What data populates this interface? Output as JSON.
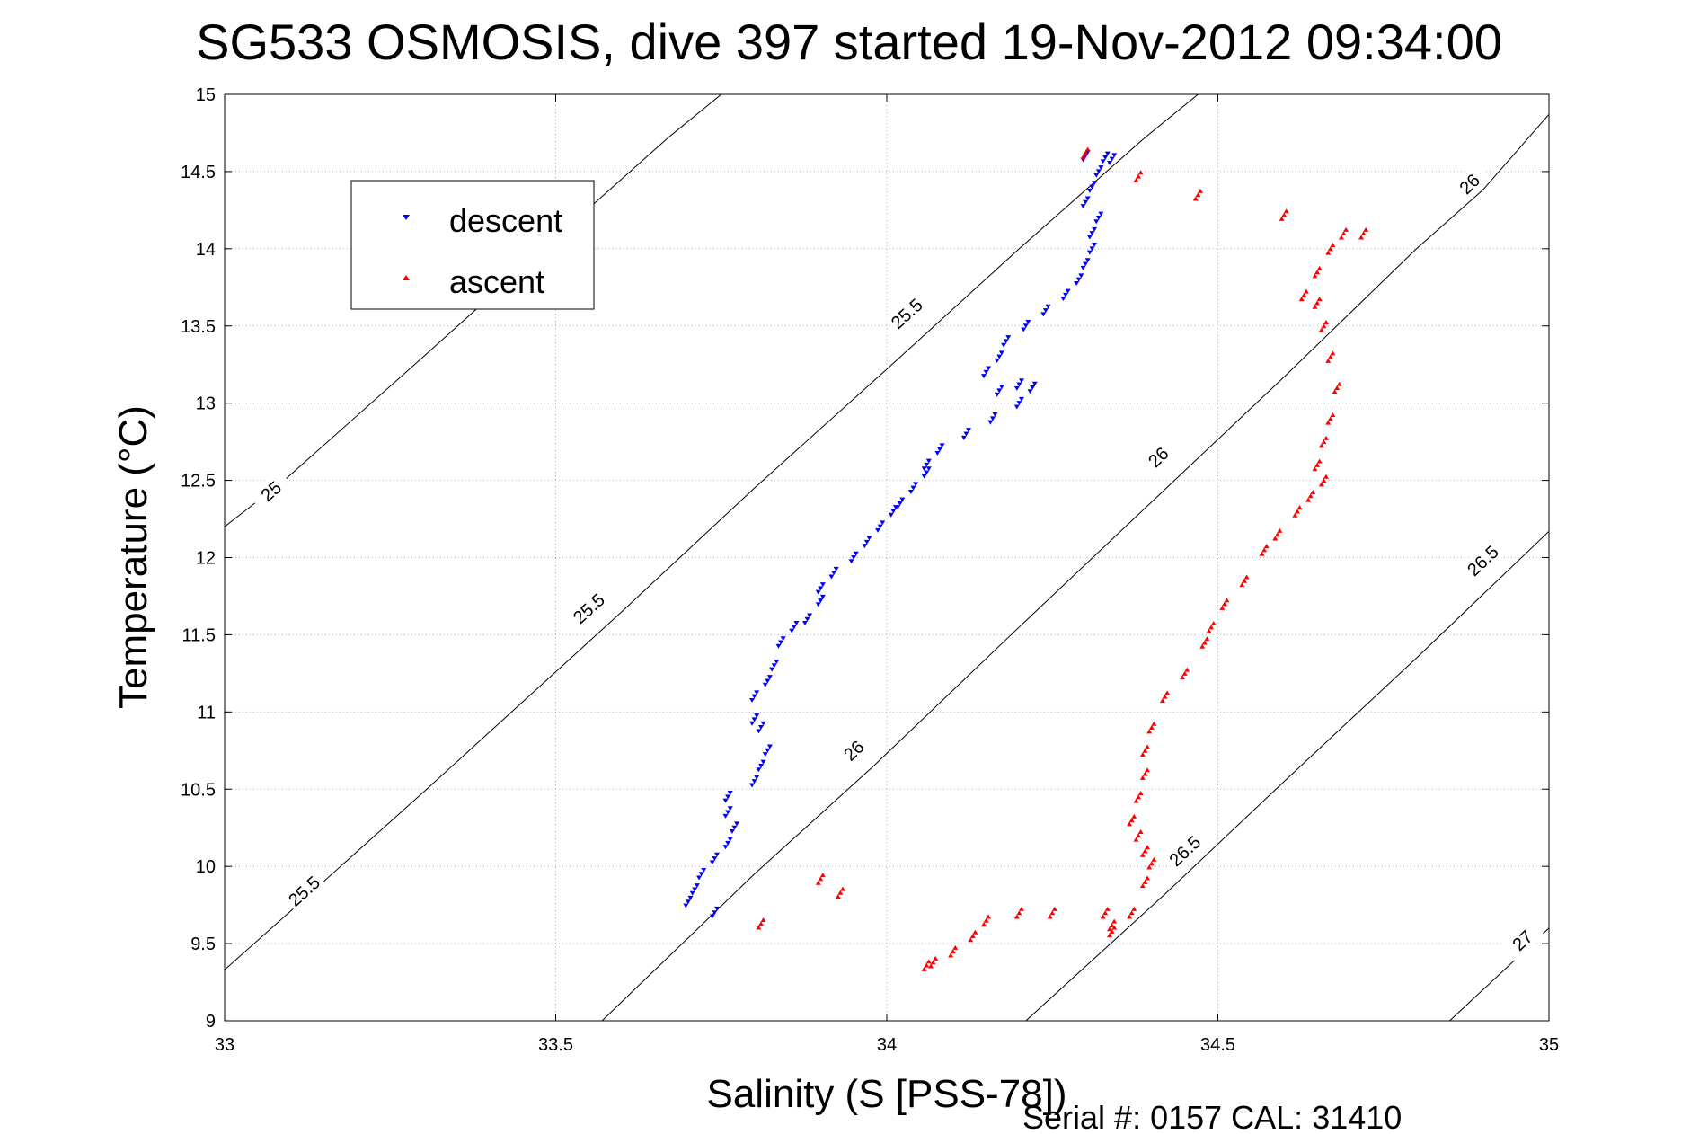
{
  "chart_data": {
    "type": "scatter",
    "title": "SG533 OSMOSIS, dive 397 started 19-Nov-2012 09:34:00",
    "xlabel": "Salinity (S [PSS-78])",
    "ylabel": "Temperature (°C)",
    "xlim": [
      33,
      35
    ],
    "ylim": [
      9,
      15
    ],
    "xticks": [
      "33",
      "33.5",
      "34",
      "34.5",
      "35"
    ],
    "yticks": [
      "9",
      "9.5",
      "10",
      "10.5",
      "11",
      "11.5",
      "12",
      "12.5",
      "13",
      "13.5",
      "14",
      "14.5",
      "15"
    ],
    "grid": true,
    "legend_position": "top-left",
    "footer": "Serial #: 0157  CAL: 31410",
    "isopycnals": [
      {
        "level": "25",
        "points": [
          [
            33.0,
            12.2
          ],
          [
            33.09,
            12.5
          ],
          [
            33.3,
            13.3
          ],
          [
            33.5,
            14.07
          ],
          [
            33.56,
            14.3
          ],
          [
            33.67,
            14.72
          ],
          [
            33.75,
            15.0
          ]
        ],
        "labels": [
          {
            "s": 33.07,
            "t": 12.43
          }
        ]
      },
      {
        "level": "25.5",
        "points": [
          [
            33.0,
            9.33
          ],
          [
            33.11,
            9.75
          ],
          [
            33.3,
            10.48
          ],
          [
            33.5,
            11.26
          ],
          [
            33.6,
            11.65
          ],
          [
            33.8,
            12.45
          ],
          [
            34.0,
            13.22
          ],
          [
            34.2,
            14.0
          ],
          [
            34.39,
            14.72
          ],
          [
            34.47,
            15.0
          ]
        ],
        "labels": [
          {
            "s": 33.12,
            "t": 9.84
          },
          {
            "s": 33.55,
            "t": 11.67
          },
          {
            "s": 34.03,
            "t": 13.58
          }
        ]
      },
      {
        "level": "26",
        "points": [
          [
            33.57,
            9.0
          ],
          [
            33.8,
            9.95
          ],
          [
            33.98,
            10.65
          ],
          [
            34.2,
            11.55
          ],
          [
            34.4,
            12.36
          ],
          [
            34.6,
            13.17
          ],
          [
            34.8,
            14.0
          ],
          [
            34.9,
            14.38
          ],
          [
            35.0,
            14.87
          ]
        ],
        "labels": [
          {
            "s": 33.95,
            "t": 10.75
          },
          {
            "s": 34.41,
            "t": 12.65
          },
          {
            "s": 34.88,
            "t": 14.42
          }
        ]
      },
      {
        "level": "26.5",
        "points": [
          [
            34.21,
            9.0
          ],
          [
            34.42,
            9.82
          ],
          [
            34.6,
            10.55
          ],
          [
            34.8,
            11.35
          ],
          [
            35.0,
            12.17
          ]
        ],
        "labels": [
          {
            "s": 34.45,
            "t": 10.1
          },
          {
            "s": 34.9,
            "t": 11.98
          }
        ]
      },
      {
        "level": "27",
        "points": [
          [
            34.85,
            9.0
          ],
          [
            35.0,
            9.6
          ]
        ],
        "labels": [
          {
            "s": 34.96,
            "t": 9.52
          }
        ]
      }
    ],
    "series": [
      {
        "name": "descent",
        "color": "#0000ff",
        "marker": "triangle-down",
        "points": [
          [
            34.3,
            14.6
          ],
          [
            34.33,
            14.59
          ],
          [
            34.34,
            14.58
          ],
          [
            34.32,
            14.5
          ],
          [
            34.31,
            14.4
          ],
          [
            34.3,
            14.3
          ],
          [
            34.32,
            14.2
          ],
          [
            34.31,
            14.1
          ],
          [
            34.31,
            14.0
          ],
          [
            34.3,
            13.9
          ],
          [
            34.29,
            13.8
          ],
          [
            34.27,
            13.7
          ],
          [
            34.24,
            13.6
          ],
          [
            34.21,
            13.5
          ],
          [
            34.18,
            13.4
          ],
          [
            34.17,
            13.3
          ],
          [
            34.15,
            13.2
          ],
          [
            34.2,
            13.12
          ],
          [
            34.17,
            13.08
          ],
          [
            34.22,
            13.1
          ],
          [
            34.2,
            13.0
          ],
          [
            34.16,
            12.9
          ],
          [
            34.12,
            12.8
          ],
          [
            34.08,
            12.7
          ],
          [
            34.06,
            12.6
          ],
          [
            34.06,
            12.55
          ],
          [
            34.04,
            12.45
          ],
          [
            34.02,
            12.35
          ],
          [
            34.01,
            12.3
          ],
          [
            33.99,
            12.2
          ],
          [
            33.97,
            12.1
          ],
          [
            33.95,
            12.0
          ],
          [
            33.92,
            11.9
          ],
          [
            33.9,
            11.8
          ],
          [
            33.9,
            11.72
          ],
          [
            33.88,
            11.6
          ],
          [
            33.86,
            11.55
          ],
          [
            33.84,
            11.45
          ],
          [
            33.83,
            11.3
          ],
          [
            33.82,
            11.2
          ],
          [
            33.8,
            11.1
          ],
          [
            33.8,
            10.95
          ],
          [
            33.81,
            10.9
          ],
          [
            33.82,
            10.75
          ],
          [
            33.81,
            10.65
          ],
          [
            33.8,
            10.55
          ],
          [
            33.76,
            10.45
          ],
          [
            33.76,
            10.35
          ],
          [
            33.77,
            10.25
          ],
          [
            33.76,
            10.15
          ],
          [
            33.74,
            10.05
          ],
          [
            33.72,
            9.95
          ],
          [
            33.71,
            9.85
          ],
          [
            33.7,
            9.77
          ],
          [
            33.74,
            9.7
          ]
        ]
      },
      {
        "name": "ascent",
        "color": "#ff0000",
        "marker": "triangle-up",
        "points": [
          [
            34.06,
            9.36
          ],
          [
            34.1,
            9.45
          ],
          [
            34.13,
            9.55
          ],
          [
            34.15,
            9.65
          ],
          [
            34.2,
            9.7
          ],
          [
            34.25,
            9.7
          ],
          [
            34.33,
            9.7
          ],
          [
            34.34,
            9.62
          ],
          [
            34.37,
            9.7
          ],
          [
            34.39,
            9.9
          ],
          [
            34.39,
            10.1
          ],
          [
            34.38,
            10.2
          ],
          [
            34.37,
            10.3
          ],
          [
            34.38,
            10.45
          ],
          [
            34.39,
            10.6
          ],
          [
            34.39,
            10.75
          ],
          [
            34.4,
            10.9
          ],
          [
            34.42,
            11.1
          ],
          [
            34.45,
            11.25
          ],
          [
            34.48,
            11.45
          ],
          [
            34.49,
            11.55
          ],
          [
            34.51,
            11.7
          ],
          [
            34.54,
            11.85
          ],
          [
            34.57,
            12.05
          ],
          [
            34.59,
            12.15
          ],
          [
            34.62,
            12.3
          ],
          [
            34.64,
            12.4
          ],
          [
            34.66,
            12.5
          ],
          [
            34.65,
            12.6
          ],
          [
            34.66,
            12.75
          ],
          [
            34.67,
            12.9
          ],
          [
            34.68,
            13.1
          ],
          [
            34.67,
            13.3
          ],
          [
            34.66,
            13.5
          ],
          [
            34.65,
            13.65
          ],
          [
            34.63,
            13.7
          ],
          [
            34.65,
            13.85
          ],
          [
            34.67,
            14.0
          ],
          [
            34.69,
            14.1
          ],
          [
            34.72,
            14.1
          ],
          [
            34.6,
            14.22
          ],
          [
            34.47,
            14.35
          ],
          [
            34.38,
            14.47
          ],
          [
            34.3,
            14.62
          ],
          [
            34.07,
            9.38
          ],
          [
            33.81,
            9.63
          ],
          [
            33.9,
            9.92
          ],
          [
            33.93,
            9.83
          ],
          [
            34.4,
            10.02
          ],
          [
            34.34,
            9.58
          ]
        ]
      }
    ]
  }
}
